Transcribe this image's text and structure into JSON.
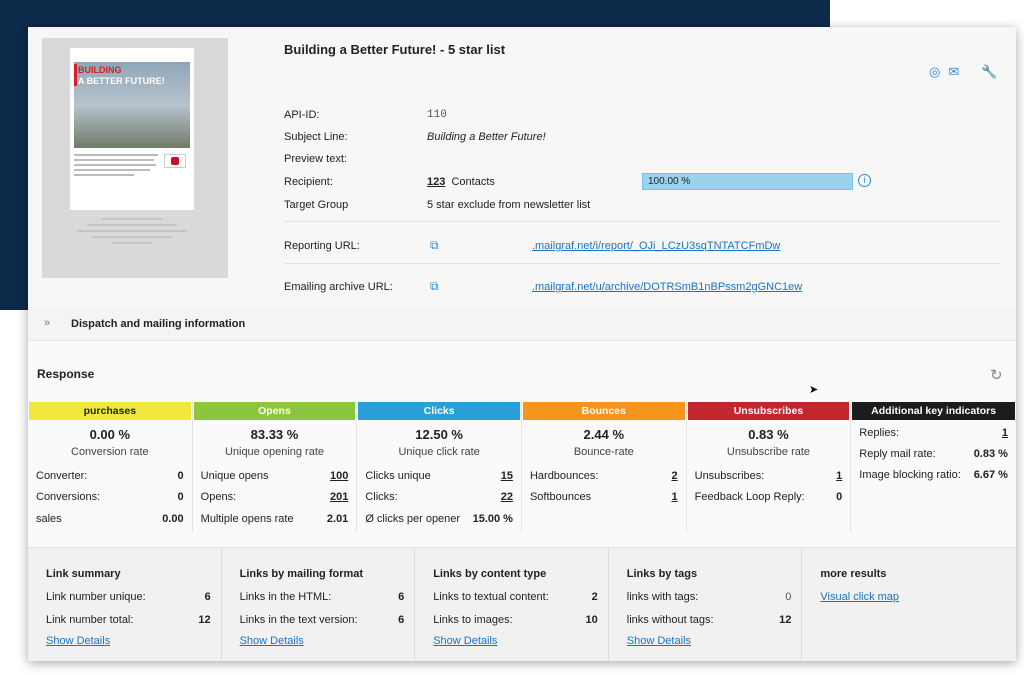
{
  "campaign": {
    "title": "Building a Better Future! - 5 star list",
    "preview": {
      "headline_line1": "BUILDING",
      "headline_line2": "A BETTER FUTURE!"
    }
  },
  "details": {
    "api_id_label": "API-ID:",
    "api_id_value": "110",
    "subject_label": "Subject Line:",
    "subject_value": "Building a Better Future!",
    "preview_label": "Preview text:",
    "recipient_label": "Recipient:",
    "recipient_count": "123",
    "recipient_unit": "Contacts",
    "recipient_progress_text": "100.00 %",
    "recipient_progress": 100,
    "target_label": "Target Group",
    "target_value": "5 star exclude from newsletter list",
    "reporting_label": "Reporting URL:",
    "reporting_url": ".mailgraf.net/i/report/_OJi_LCzU3sqTNTATCFmDw",
    "archive_label": "Emailing archive URL:",
    "archive_url": ".mailgraf.net/u/archive/DOTRSmB1nBPssm2gGNC1ew"
  },
  "dispatch": {
    "label": "Dispatch and mailing information"
  },
  "response": {
    "title": "Response",
    "columns": [
      {
        "head": "purchases",
        "color": "#f1e83c",
        "text_color": "#222222",
        "main": "0.00 %",
        "sub": "Conversion rate",
        "rows": [
          {
            "label": "Converter:",
            "value": "0"
          },
          {
            "label": "Conversions:",
            "value": "0"
          },
          {
            "label": "sales",
            "value": "0.00"
          }
        ]
      },
      {
        "head": "Opens",
        "color": "#8cc63f",
        "text_color": "#ffffff",
        "main": "83.33 %",
        "sub": "Unique opening rate",
        "rows": [
          {
            "label": "Unique opens",
            "value": "100"
          },
          {
            "label": "Opens:",
            "value": "201"
          },
          {
            "label": "Multiple opens rate",
            "value": "2.01"
          }
        ]
      },
      {
        "head": "Clicks",
        "color": "#2a9fd8",
        "text_color": "#ffffff",
        "main": "12.50 %",
        "sub": "Unique click rate",
        "rows": [
          {
            "label": "Clicks unique",
            "value": "15"
          },
          {
            "label": "Clicks:",
            "value": "22"
          },
          {
            "label": "Ø clicks per opener",
            "value": "15.00 %"
          }
        ]
      },
      {
        "head": "Bounces",
        "color": "#f7941d",
        "text_color": "#ffffff",
        "main": "2.44 %",
        "sub": "Bounce-rate",
        "rows": [
          {
            "label": "Hardbounces:",
            "value": "2"
          },
          {
            "label": "Softbounces",
            "value": "1"
          }
        ]
      },
      {
        "head": "Unsubscribes",
        "color": "#c1272d",
        "text_color": "#ffffff",
        "main": "0.83 %",
        "sub": "Unsubscribe rate",
        "rows": [
          {
            "label": "Unsubscribes:",
            "value": "1"
          },
          {
            "label": "Feedback Loop Reply:",
            "value": "0"
          }
        ]
      },
      {
        "head": "Additional key indicators",
        "color": "#1c1c1c",
        "text_color": "#ffffff",
        "rows": [
          {
            "label": "Replies:",
            "value": "1"
          },
          {
            "label": "Reply mail rate:",
            "value": "0.83 %"
          },
          {
            "label": "Image blocking ratio:",
            "value": "6.67 %"
          }
        ]
      }
    ]
  },
  "links": {
    "summary": {
      "head": "Link summary",
      "r1_label": "Link number unique:",
      "r1_value": "6",
      "r2_label": "Link number total:",
      "r2_value": "12",
      "details": "Show Details"
    },
    "format": {
      "head": "Links by mailing format",
      "r1_label": "Links in the HTML:",
      "r1_value": "6",
      "r2_label": "Links in the text version:",
      "r2_value": "6",
      "details": "Show Details"
    },
    "content": {
      "head": "Links by content type",
      "r1_label": "Links to textual content:",
      "r1_value": "2",
      "r2_label": "Links to images:",
      "r2_value": "10",
      "details": "Show Details"
    },
    "tags": {
      "head": "Links by tags",
      "r1_label": "links with tags:",
      "r1_value": "0",
      "r2_label": "links without tags:",
      "r2_value": "12",
      "details": "Show Details"
    },
    "more": {
      "head": "more results",
      "link": "Visual click map"
    }
  }
}
